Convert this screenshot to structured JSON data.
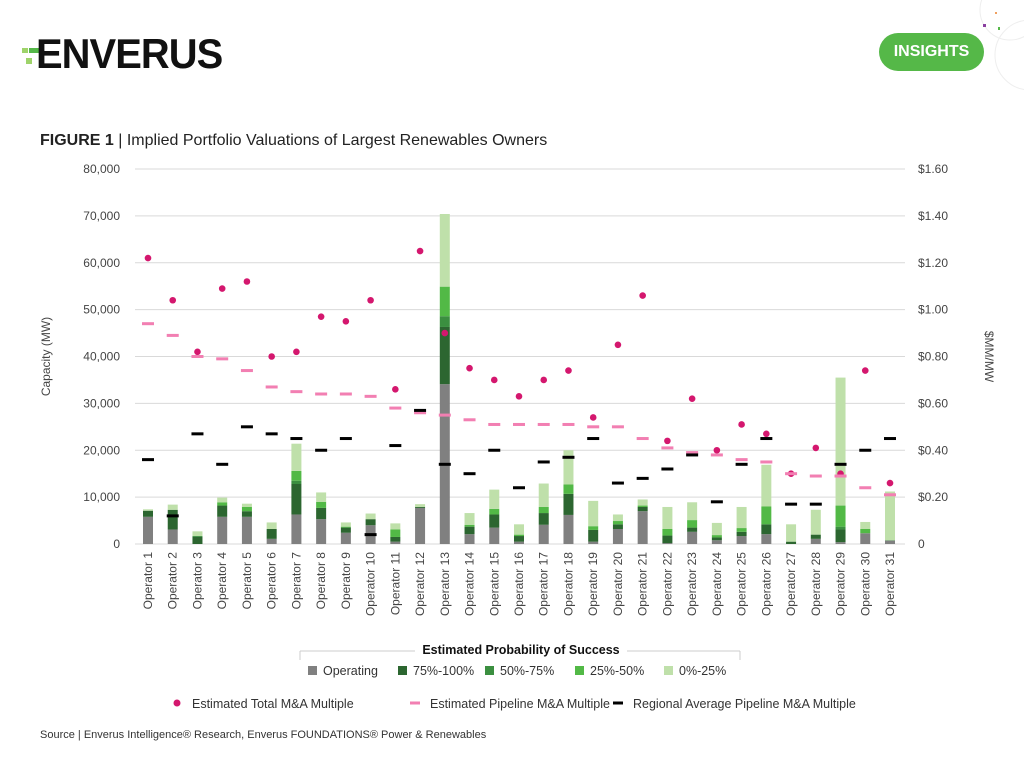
{
  "header": {
    "logo_text": "ENVERUS",
    "insights_label": "INSIGHTS"
  },
  "figure": {
    "label": "FIGURE 1",
    "separator": " | ",
    "title": "Implied Portfolio Valuations of Largest Renewables Owners"
  },
  "source": "Source | Enverus Intelligence® Research, Enverus FOUNDATIONS® Power & Renewables",
  "colors": {
    "operating": "#808080",
    "p75_100": "#2c6630",
    "p50_75": "#3b8f40",
    "p25_50": "#52b946",
    "p0_25": "#bfe0aa",
    "total": "#d4176e",
    "pipeline": "#f27fb2",
    "regional": "#000000",
    "brand": "#55b848"
  },
  "chart_data": {
    "type": "bar",
    "title": "Implied Portfolio Valuations of Largest Renewables Owners",
    "ylabel": "Capacity (MW)",
    "y2label": "$MM/MW",
    "ylim": [
      0,
      80000
    ],
    "y2lim": [
      0,
      1.6
    ],
    "yticks": [
      "0",
      "10,000",
      "20,000",
      "30,000",
      "40,000",
      "50,000",
      "60,000",
      "70,000",
      "80,000"
    ],
    "y2ticks": [
      "0",
      "$0.20",
      "$0.40",
      "$0.60",
      "$0.80",
      "$1.00",
      "$1.20",
      "$1.40",
      "$1.60"
    ],
    "grid": true,
    "categories": [
      "Operator 1",
      "Operator 2",
      "Operator 3",
      "Operator 4",
      "Operator 5",
      "Operator 6",
      "Operator 7",
      "Operator 8",
      "Operator 9",
      "Operator 10",
      "Operator 11",
      "Operator 12",
      "Operator 13",
      "Operator 14",
      "Operator 15",
      "Operator 16",
      "Operator 17",
      "Operator 18",
      "Operator 19",
      "Operator 20",
      "Operator 21",
      "Operator 22",
      "Operator 23",
      "Operator 24",
      "Operator 25",
      "Operator 26",
      "Operator 27",
      "Operator 28",
      "Operator 29",
      "Operator 30",
      "Operator 31"
    ],
    "stack_legend_title": "Estimated Probability of Success",
    "series": [
      {
        "name": "Operating",
        "key": "operating",
        "values": [
          5800,
          3100,
          0,
          5800,
          5800,
          1100,
          6300,
          5300,
          2400,
          4000,
          500,
          7700,
          34100,
          2100,
          3500,
          500,
          4100,
          6200,
          500,
          3200,
          7000,
          200,
          2600,
          800,
          1700,
          2100,
          0,
          1100,
          400,
          2300,
          700
        ]
      },
      {
        "name": "75%-100%",
        "key": "p75_100",
        "values": [
          1300,
          4200,
          1500,
          2400,
          1200,
          2100,
          6500,
          2400,
          1100,
          1300,
          1000,
          200,
          12200,
          1600,
          2800,
          1200,
          2500,
          4500,
          2500,
          1000,
          900,
          1600,
          900,
          600,
          900,
          2100,
          500,
          900,
          2700,
          0,
          100
        ]
      },
      {
        "name": "50%-75%",
        "key": "p50_75",
        "values": [
          0,
          0,
          200,
          0,
          0,
          0,
          700,
          0,
          0,
          0,
          0,
          0,
          2300,
          0,
          0,
          0,
          0,
          0,
          0,
          0,
          0,
          0,
          0,
          0,
          0,
          0,
          0,
          0,
          600,
          0,
          0
        ]
      },
      {
        "name": "25%-50%",
        "key": "p25_50",
        "values": [
          0,
          0,
          0,
          700,
          900,
          0,
          2100,
          1300,
          200,
          0,
          1600,
          0,
          6300,
          400,
          1200,
          300,
          1300,
          2000,
          800,
          700,
          300,
          1400,
          1600,
          500,
          800,
          3800,
          0,
          0,
          4500,
          900,
          0
        ]
      },
      {
        "name": "0%-25%",
        "key": "p0_25",
        "values": [
          300,
          1100,
          1000,
          1000,
          700,
          1400,
          5800,
          2000,
          900,
          1200,
          1300,
          600,
          15500,
          2500,
          4100,
          2200,
          5000,
          7300,
          5400,
          1400,
          1300,
          4700,
          3800,
          2600,
          4500,
          8900,
          3700,
          5300,
          27300,
          1500,
          10400
        ]
      }
    ],
    "markers": [
      {
        "name": "Estimated Total M&A Multiple",
        "key": "total",
        "shape": "dot",
        "values": [
          1.22,
          1.04,
          0.82,
          1.09,
          1.12,
          0.8,
          0.82,
          0.97,
          0.95,
          1.04,
          0.66,
          1.25,
          0.9,
          0.75,
          0.7,
          0.63,
          0.7,
          0.74,
          0.54,
          0.85,
          1.06,
          0.44,
          0.62,
          0.4,
          0.51,
          0.47,
          0.3,
          0.41,
          0.3,
          0.74,
          0.26
        ]
      },
      {
        "name": "Estimated Pipeline M&A Multiple",
        "key": "pipeline",
        "shape": "dash",
        "values": [
          0.94,
          0.89,
          0.8,
          0.79,
          0.74,
          0.67,
          0.65,
          0.64,
          0.64,
          0.63,
          0.58,
          0.56,
          0.55,
          0.53,
          0.51,
          0.51,
          0.51,
          0.51,
          0.5,
          0.5,
          0.45,
          0.41,
          0.39,
          0.38,
          0.36,
          0.35,
          0.3,
          0.29,
          0.29,
          0.24,
          0.21
        ]
      },
      {
        "name": "Regional Average Pipeline M&A Multiple",
        "key": "regional",
        "shape": "dash",
        "values": [
          0.36,
          0.12,
          0.47,
          0.34,
          0.5,
          0.47,
          0.45,
          0.4,
          0.45,
          0.04,
          0.42,
          0.57,
          0.34,
          0.3,
          0.4,
          0.24,
          0.35,
          0.37,
          0.45,
          0.26,
          0.28,
          0.32,
          0.38,
          0.18,
          0.34,
          0.45,
          0.17,
          0.17,
          0.34,
          0.4,
          0.45
        ]
      }
    ]
  }
}
